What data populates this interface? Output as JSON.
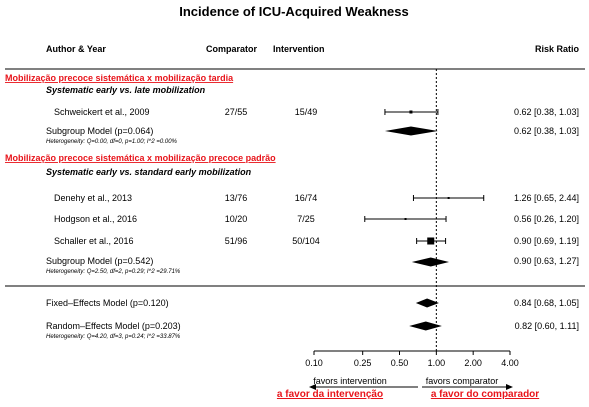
{
  "title": "Incidence of ICU-Acquired Weakness",
  "headers": {
    "author": "Author & Year",
    "comparator": "Comparator",
    "intervention": "Intervention",
    "risk_ratio": "Risk Ratio"
  },
  "colors": {
    "accent_red": "#e8141b",
    "ink": "#000000"
  },
  "groups": [
    {
      "pt_title": "Mobilização precoce sistemática x mobilização tardia",
      "en_title": "Systematic early vs. late mobilization",
      "studies": [
        {
          "name": "Schweickert et al., 2009",
          "comparator": "27/55",
          "intervention": "15/49",
          "ci_text": "0.62 [0.38, 1.03]"
        }
      ],
      "subgroup": {
        "label": "Subgroup Model (p=0.064)",
        "heterogeneity": "Heterogeneity: Q=0.00, df=0, p=1.00; I^2 =0.00%",
        "ci_text": "0.62 [0.38, 1.03]"
      }
    },
    {
      "pt_title": "Mobilização precoce sistemática x mobilização precoce padrão",
      "en_title": "Systematic early vs. standard early mobilization",
      "studies": [
        {
          "name": "Denehy et al., 2013",
          "comparator": "13/76",
          "intervention": "16/74",
          "ci_text": "1.26 [0.65, 2.44]"
        },
        {
          "name": "Hodgson et al., 2016",
          "comparator": "10/20",
          "intervention": "7/25",
          "ci_text": "0.56 [0.26, 1.20]"
        },
        {
          "name": "Schaller et al., 2016",
          "comparator": "51/96",
          "intervention": "50/104",
          "ci_text": "0.90 [0.69, 1.19]"
        }
      ],
      "subgroup": {
        "label": "Subgroup Model (p=0.542)",
        "heterogeneity": "Heterogeneity: Q=2.50, df=2, p=0.29; I^2 =29.71%",
        "ci_text": "0.90 [0.63, 1.27]"
      }
    }
  ],
  "overall": {
    "fixed": {
      "label": "Fixed–Effects Model (p=0.120)",
      "ci_text": "0.84 [0.68, 1.05]"
    },
    "random": {
      "label": "Random–Effects Model (p=0.203)",
      "heterogeneity": "Heterogeneity: Q=4.20, df=3, p=0.24; I^2 =33.87%",
      "ci_text": "0.82 [0.60, 1.11]"
    }
  },
  "axis": {
    "ticks": [
      0.1,
      0.25,
      0.5,
      1.0,
      2.0,
      4.0
    ],
    "tick_labels": [
      "0.10",
      "0.25",
      "0.50",
      "1.00",
      "2.00",
      "4.00"
    ],
    "favors_left": "favors intervention",
    "favors_right": "favors comparator",
    "pt_left": "a favor da intervenção",
    "pt_right": "a favor do comparador"
  },
  "chart_data": {
    "type": "forest",
    "scale": "log",
    "xlim": [
      0.1,
      4.0
    ],
    "reference_line": 1.0,
    "studies": [
      {
        "name": "Schweickert et al., 2009",
        "group": 1,
        "rr": 0.62,
        "lo": 0.38,
        "hi": 1.03
      },
      {
        "name": "Denehy et al., 2013",
        "group": 2,
        "rr": 1.26,
        "lo": 0.65,
        "hi": 2.44
      },
      {
        "name": "Hodgson et al., 2016",
        "group": 2,
        "rr": 0.56,
        "lo": 0.26,
        "hi": 1.2
      },
      {
        "name": "Schaller et al., 2016",
        "group": 2,
        "rr": 0.9,
        "lo": 0.69,
        "hi": 1.19
      }
    ],
    "summaries": [
      {
        "name": "Subgroup Model 1",
        "rr": 0.62,
        "lo": 0.38,
        "hi": 1.03
      },
      {
        "name": "Subgroup Model 2",
        "rr": 0.9,
        "lo": 0.63,
        "hi": 1.27
      },
      {
        "name": "Fixed-Effects Model",
        "rr": 0.84,
        "lo": 0.68,
        "hi": 1.05
      },
      {
        "name": "Random-Effects Model",
        "rr": 0.82,
        "lo": 0.6,
        "hi": 1.11
      }
    ]
  }
}
